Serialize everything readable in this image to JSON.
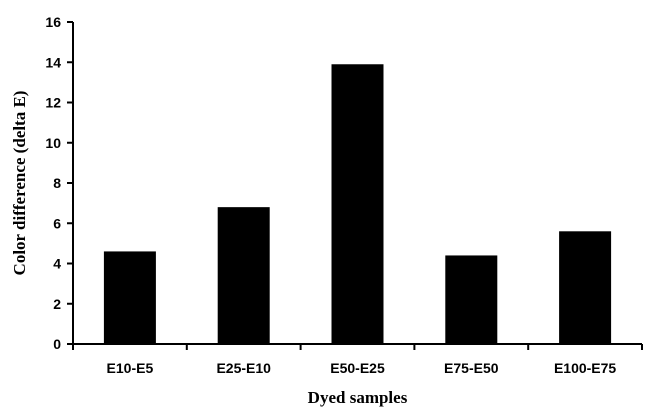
{
  "chart_data": {
    "type": "bar",
    "categories": [
      "E10-E5",
      "E25-E10",
      "E50-E25",
      "E75-E50",
      "E100-E75"
    ],
    "values": [
      4.6,
      6.8,
      13.9,
      4.4,
      5.6
    ],
    "xlabel": "Dyed samples",
    "ylabel": "Color difference (delta E)",
    "ylim": [
      0,
      16
    ],
    "yticks": [
      0,
      2,
      4,
      6,
      8,
      10,
      12,
      14,
      16
    ],
    "bar_color": "#000000",
    "grid": false,
    "legend": "none"
  }
}
